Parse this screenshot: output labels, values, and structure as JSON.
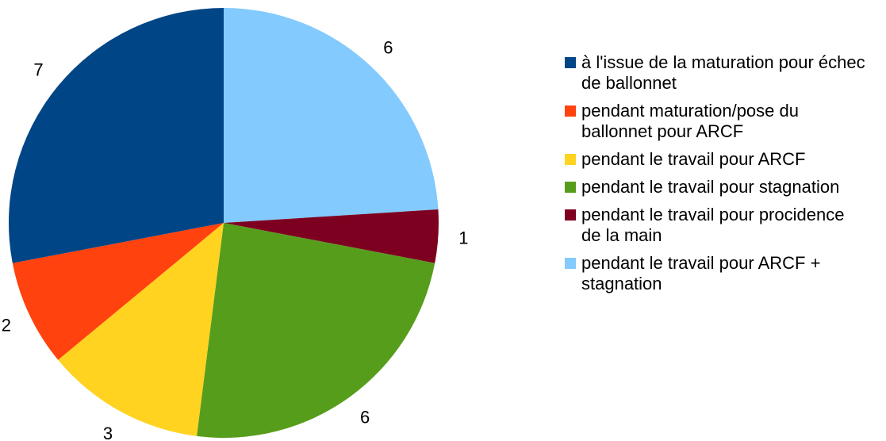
{
  "chart_data": {
    "type": "pie",
    "title": "",
    "categories": [
      "à l'issue de la maturation pour échec de ballonnet",
      "pendant maturation/pose du ballonnet pour ARCF",
      "pendant le travail pour ARCF",
      "pendant le travail pour stagnation",
      "pendant le travail pour procidence de la main",
      "pendant le travail pour ARCF + stagnation"
    ],
    "values": [
      7,
      2,
      3,
      6,
      1,
      6
    ],
    "labels": [
      "7",
      "2",
      "3",
      "6",
      "1",
      "6"
    ],
    "colors": [
      "#004586",
      "#ff420e",
      "#ffd320",
      "#579d1c",
      "#7e0021",
      "#83caff"
    ],
    "legend_position": "right"
  }
}
